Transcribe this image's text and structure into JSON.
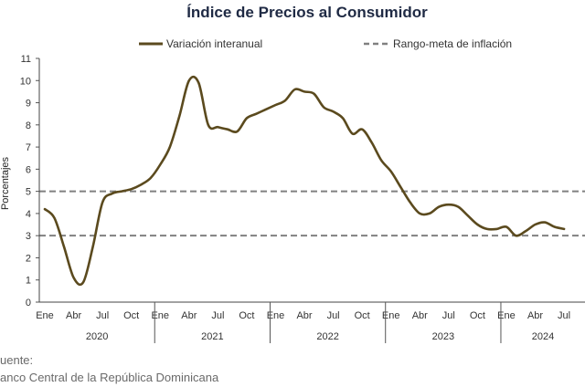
{
  "chart_data": {
    "type": "line",
    "title": "Índice de Precios al Consumidor",
    "ylabel": "Porcentajes",
    "xlabel": "",
    "ylim": [
      0,
      11
    ],
    "yticks": [
      0,
      1,
      2,
      3,
      4,
      5,
      6,
      7,
      8,
      9,
      10,
      11
    ],
    "grid": false,
    "legend_position": "top",
    "month_tick_labels": [
      "Ene",
      "Abr",
      "Jul",
      "Oct"
    ],
    "years": [
      "2020",
      "2021",
      "2022",
      "2023",
      "2024"
    ],
    "x_start": "2020-01",
    "series": [
      {
        "name": "Variación interanual",
        "color": "#5b4a1e",
        "style": "solid",
        "values": [
          4.2,
          3.8,
          2.5,
          1.1,
          0.9,
          2.5,
          4.5,
          4.9,
          5.0,
          5.1,
          5.3,
          5.6,
          6.2,
          7.0,
          8.4,
          10.0,
          9.9,
          8.0,
          7.9,
          7.8,
          7.7,
          8.3,
          8.5,
          8.7,
          8.9,
          9.1,
          9.6,
          9.5,
          9.4,
          8.8,
          8.6,
          8.3,
          7.6,
          7.8,
          7.2,
          6.4,
          5.9,
          5.2,
          4.5,
          4.0,
          4.0,
          4.3,
          4.4,
          4.3,
          3.9,
          3.5,
          3.3,
          3.3,
          3.4,
          3.0,
          3.2,
          3.5,
          3.6,
          3.4,
          3.3
        ]
      },
      {
        "name": "Rango-meta de inflación",
        "color": "#808080",
        "style": "dashed",
        "values": [
          3,
          5
        ]
      }
    ],
    "source_label": "uente:",
    "source_text": "anco Central de la República Dominicana"
  }
}
